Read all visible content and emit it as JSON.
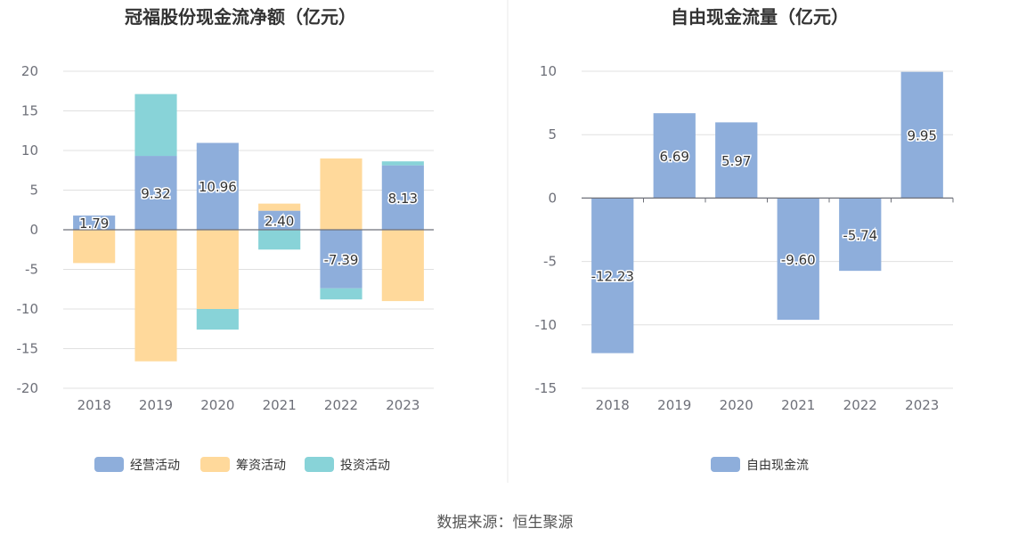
{
  "source_text": "数据来源：恒生聚源",
  "colors": {
    "operating": "#8eaedb",
    "financing": "#ffd99b",
    "investing": "#88d3d8",
    "free_cf": "#8eaedb",
    "grid": "#e0e0e0",
    "axis": "#6e7079",
    "divider": "#e8e8e8"
  },
  "chart_data": [
    {
      "type": "bar",
      "stacked": true,
      "title": "冠福股份现金流净额（亿元）",
      "categories": [
        "2018",
        "2019",
        "2020",
        "2021",
        "2022",
        "2023"
      ],
      "ylim": [
        -20,
        20
      ],
      "yticks": [
        "20",
        "15",
        "10",
        "5",
        "0",
        "-5",
        "-10",
        "-15",
        "-20"
      ],
      "legend_position": "bottom",
      "series": [
        {
          "name": "经营活动",
          "color_key": "operating",
          "values": [
            1.79,
            9.32,
            10.96,
            2.4,
            -7.39,
            8.13
          ],
          "labels": [
            "1.79",
            "9.32",
            "10.96",
            "2.40",
            "-7.39",
            "8.13"
          ]
        },
        {
          "name": "筹资活动",
          "color_key": "financing",
          "values": [
            -4.2,
            -16.6,
            -10.0,
            0.9,
            9.0,
            -9.0
          ]
        },
        {
          "name": "投资活动",
          "color_key": "investing",
          "values": [
            0.0,
            7.8,
            -2.6,
            -2.5,
            -1.4,
            0.5
          ]
        }
      ]
    },
    {
      "type": "bar",
      "title": "自由现金流量（亿元）",
      "categories": [
        "2018",
        "2019",
        "2020",
        "2021",
        "2022",
        "2023"
      ],
      "ylim": [
        -15,
        10
      ],
      "yticks": [
        "10",
        "5",
        "0",
        "-5",
        "-10",
        "-15"
      ],
      "legend_position": "bottom",
      "series": [
        {
          "name": "自由现金流",
          "color_key": "free_cf",
          "values": [
            -12.23,
            6.69,
            5.97,
            -9.6,
            -5.74,
            9.95
          ],
          "labels": [
            "-12.23",
            "6.69",
            "5.97",
            "-9.60",
            "-5.74",
            "9.95"
          ]
        }
      ]
    }
  ]
}
